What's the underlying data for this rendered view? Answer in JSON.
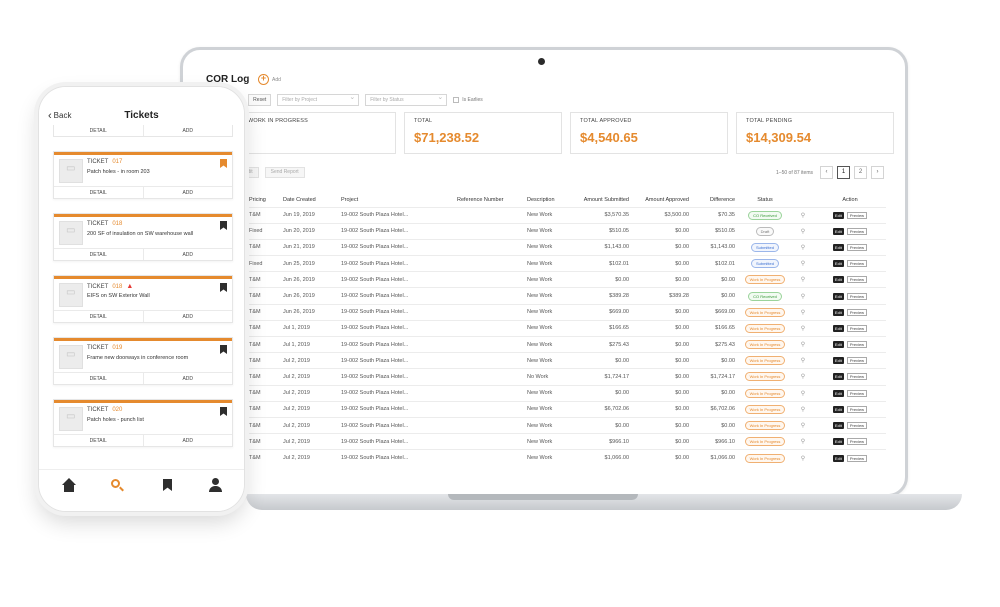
{
  "desktop": {
    "title": "COR Log",
    "add_label": "Add",
    "filters": {
      "m_label": "M",
      "reset_label": "Reset",
      "project_placeholder": "Filter by Project",
      "status_placeholder": "Filter by Status",
      "checkbox_label": "Is Earlies"
    },
    "cards": [
      {
        "label": "WORK IN PROGRESS",
        "value": ""
      },
      {
        "label": "TOTAL",
        "value": "$71,238.52"
      },
      {
        "label": "TOTAL APPROVED",
        "value": "$4,540.65"
      },
      {
        "label": "TOTAL PENDING",
        "value": "$14,309.54"
      }
    ],
    "buttons": {
      "left": "Edit",
      "send_report": "Send Report"
    },
    "pagination": {
      "info": "1–50 of 87 items",
      "prev": "‹",
      "pages": [
        "1",
        "2"
      ],
      "next": "›"
    },
    "columns": [
      "Pricing",
      "Date Created",
      "Project",
      "Reference Number",
      "Description",
      "Amount Submitted",
      "Amount Approved",
      "Difference",
      "Status",
      "",
      "Action"
    ],
    "rows": [
      {
        "pricing": "T&M",
        "date": "Jun 19, 2019",
        "project": "19-002 South Plaza Hotel...",
        "ref": "",
        "desc": "New Work",
        "submitted": "$3,570.35",
        "approved": "$3,500.00",
        "diff": "$70.35",
        "status": "CO Received",
        "status_type": "co"
      },
      {
        "pricing": "Fixed",
        "date": "Jun 20, 2019",
        "project": "19-002 South Plaza Hotel...",
        "ref": "",
        "desc": "New Work",
        "submitted": "$510.05",
        "approved": "$0.00",
        "diff": "$510.05",
        "status": "Draft",
        "status_type": "draft"
      },
      {
        "pricing": "T&M",
        "date": "Jun 21, 2019",
        "project": "19-002 South Plaza Hotel...",
        "ref": "",
        "desc": "New Work",
        "submitted": "$1,143.00",
        "approved": "$0.00",
        "diff": "$1,143.00",
        "status": "Submitted",
        "status_type": "sub"
      },
      {
        "pricing": "Fixed",
        "date": "Jun 25, 2019",
        "project": "19-002 South Plaza Hotel...",
        "ref": "",
        "desc": "New Work",
        "submitted": "$102.01",
        "approved": "$0.00",
        "diff": "$102.01",
        "status": "Submitted",
        "status_type": "sub"
      },
      {
        "pricing": "T&M",
        "date": "Jun 26, 2019",
        "project": "19-002 South Plaza Hotel...",
        "ref": "",
        "desc": "New Work",
        "submitted": "$0.00",
        "approved": "$0.00",
        "diff": "$0.00",
        "status": "Work In Progress",
        "status_type": "wip"
      },
      {
        "pricing": "T&M",
        "date": "Jun 26, 2019",
        "project": "19-002 South Plaza Hotel...",
        "ref": "",
        "desc": "New Work",
        "submitted": "$389.28",
        "approved": "$389.28",
        "diff": "$0.00",
        "status": "CO Received",
        "status_type": "co"
      },
      {
        "pricing": "T&M",
        "date": "Jun 26, 2019",
        "project": "19-002 South Plaza Hotel...",
        "ref": "",
        "desc": "New Work",
        "submitted": "$669.00",
        "approved": "$0.00",
        "diff": "$669.00",
        "status": "Work In Progress",
        "status_type": "wip"
      },
      {
        "pricing": "T&M",
        "date": "Jul 1, 2019",
        "project": "19-002 South Plaza Hotel...",
        "ref": "",
        "desc": "New Work",
        "submitted": "$166.65",
        "approved": "$0.00",
        "diff": "$166.65",
        "status": "Work In Progress",
        "status_type": "wip"
      },
      {
        "pricing": "T&M",
        "date": "Jul 1, 2019",
        "project": "19-002 South Plaza Hotel...",
        "ref": "",
        "desc": "New Work",
        "submitted": "$275.43",
        "approved": "$0.00",
        "diff": "$275.43",
        "status": "Work In Progress",
        "status_type": "wip"
      },
      {
        "pricing": "T&M",
        "date": "Jul 2, 2019",
        "project": "19-002 South Plaza Hotel...",
        "ref": "",
        "desc": "New Work",
        "submitted": "$0.00",
        "approved": "$0.00",
        "diff": "$0.00",
        "status": "Work In Progress",
        "status_type": "wip"
      },
      {
        "pricing": "T&M",
        "date": "Jul 2, 2019",
        "project": "19-002 South Plaza Hotel...",
        "ref": "",
        "desc": "No Work",
        "submitted": "$1,724.17",
        "approved": "$0.00",
        "diff": "$1,724.17",
        "status": "Work In Progress",
        "status_type": "wip"
      },
      {
        "pricing": "T&M",
        "date": "Jul 2, 2019",
        "project": "19-002 South Plaza Hotel...",
        "ref": "",
        "desc": "New Work",
        "submitted": "$0.00",
        "approved": "$0.00",
        "diff": "$0.00",
        "status": "Work In Progress",
        "status_type": "wip"
      },
      {
        "pricing": "T&M",
        "date": "Jul 2, 2019",
        "project": "19-002 South Plaza Hotel...",
        "ref": "",
        "desc": "New Work",
        "submitted": "$6,702.06",
        "approved": "$0.00",
        "diff": "$6,702.06",
        "status": "Work In Progress",
        "status_type": "wip"
      },
      {
        "pricing": "T&M",
        "date": "Jul 2, 2019",
        "project": "19-002 South Plaza Hotel...",
        "ref": "",
        "desc": "New Work",
        "submitted": "$0.00",
        "approved": "$0.00",
        "diff": "$0.00",
        "status": "Work In Progress",
        "status_type": "wip"
      },
      {
        "pricing": "T&M",
        "date": "Jul 2, 2019",
        "project": "19-002 South Plaza Hotel...",
        "ref": "",
        "desc": "New Work",
        "submitted": "$966.10",
        "approved": "$0.00",
        "diff": "$966.10",
        "status": "Work In Progress",
        "status_type": "wip"
      },
      {
        "pricing": "T&M",
        "date": "Jul 2, 2019",
        "project": "19-002 South Plaza Hotel...",
        "ref": "",
        "desc": "New Work",
        "submitted": "$1,066.00",
        "approved": "$0.00",
        "diff": "$1,066.00",
        "status": "Work In Progress",
        "status_type": "wip"
      }
    ],
    "row_actions": {
      "edit": "Edit",
      "preview": "Preview"
    }
  },
  "mobile": {
    "back_label": "Back",
    "title": "Tickets",
    "detail_label": "DETAIL",
    "add_label": "ADD",
    "ticket_word": "TICKET",
    "tickets": [
      {
        "number": "017",
        "desc": "Patch holes - in room 203",
        "warning": false,
        "bookmark": "orange"
      },
      {
        "number": "018",
        "desc": "200 SF of insulation on SW warehouse wall",
        "warning": false,
        "bookmark": "dark"
      },
      {
        "number": "018",
        "desc": "EIFS on SW Exterior Wall",
        "warning": true,
        "bookmark": "dark"
      },
      {
        "number": "019",
        "desc": "Frame new doorways in conference room",
        "warning": false,
        "bookmark": "dark"
      },
      {
        "number": "020",
        "desc": "Patch holes - punch list",
        "warning": false,
        "bookmark": "dark"
      }
    ],
    "nav": [
      "home-icon",
      "search-icon",
      "bookmark-icon",
      "user-icon"
    ]
  },
  "colors": {
    "accent": "#e58a2e",
    "dark": "#2e2e2e",
    "warning": "#e53935"
  }
}
